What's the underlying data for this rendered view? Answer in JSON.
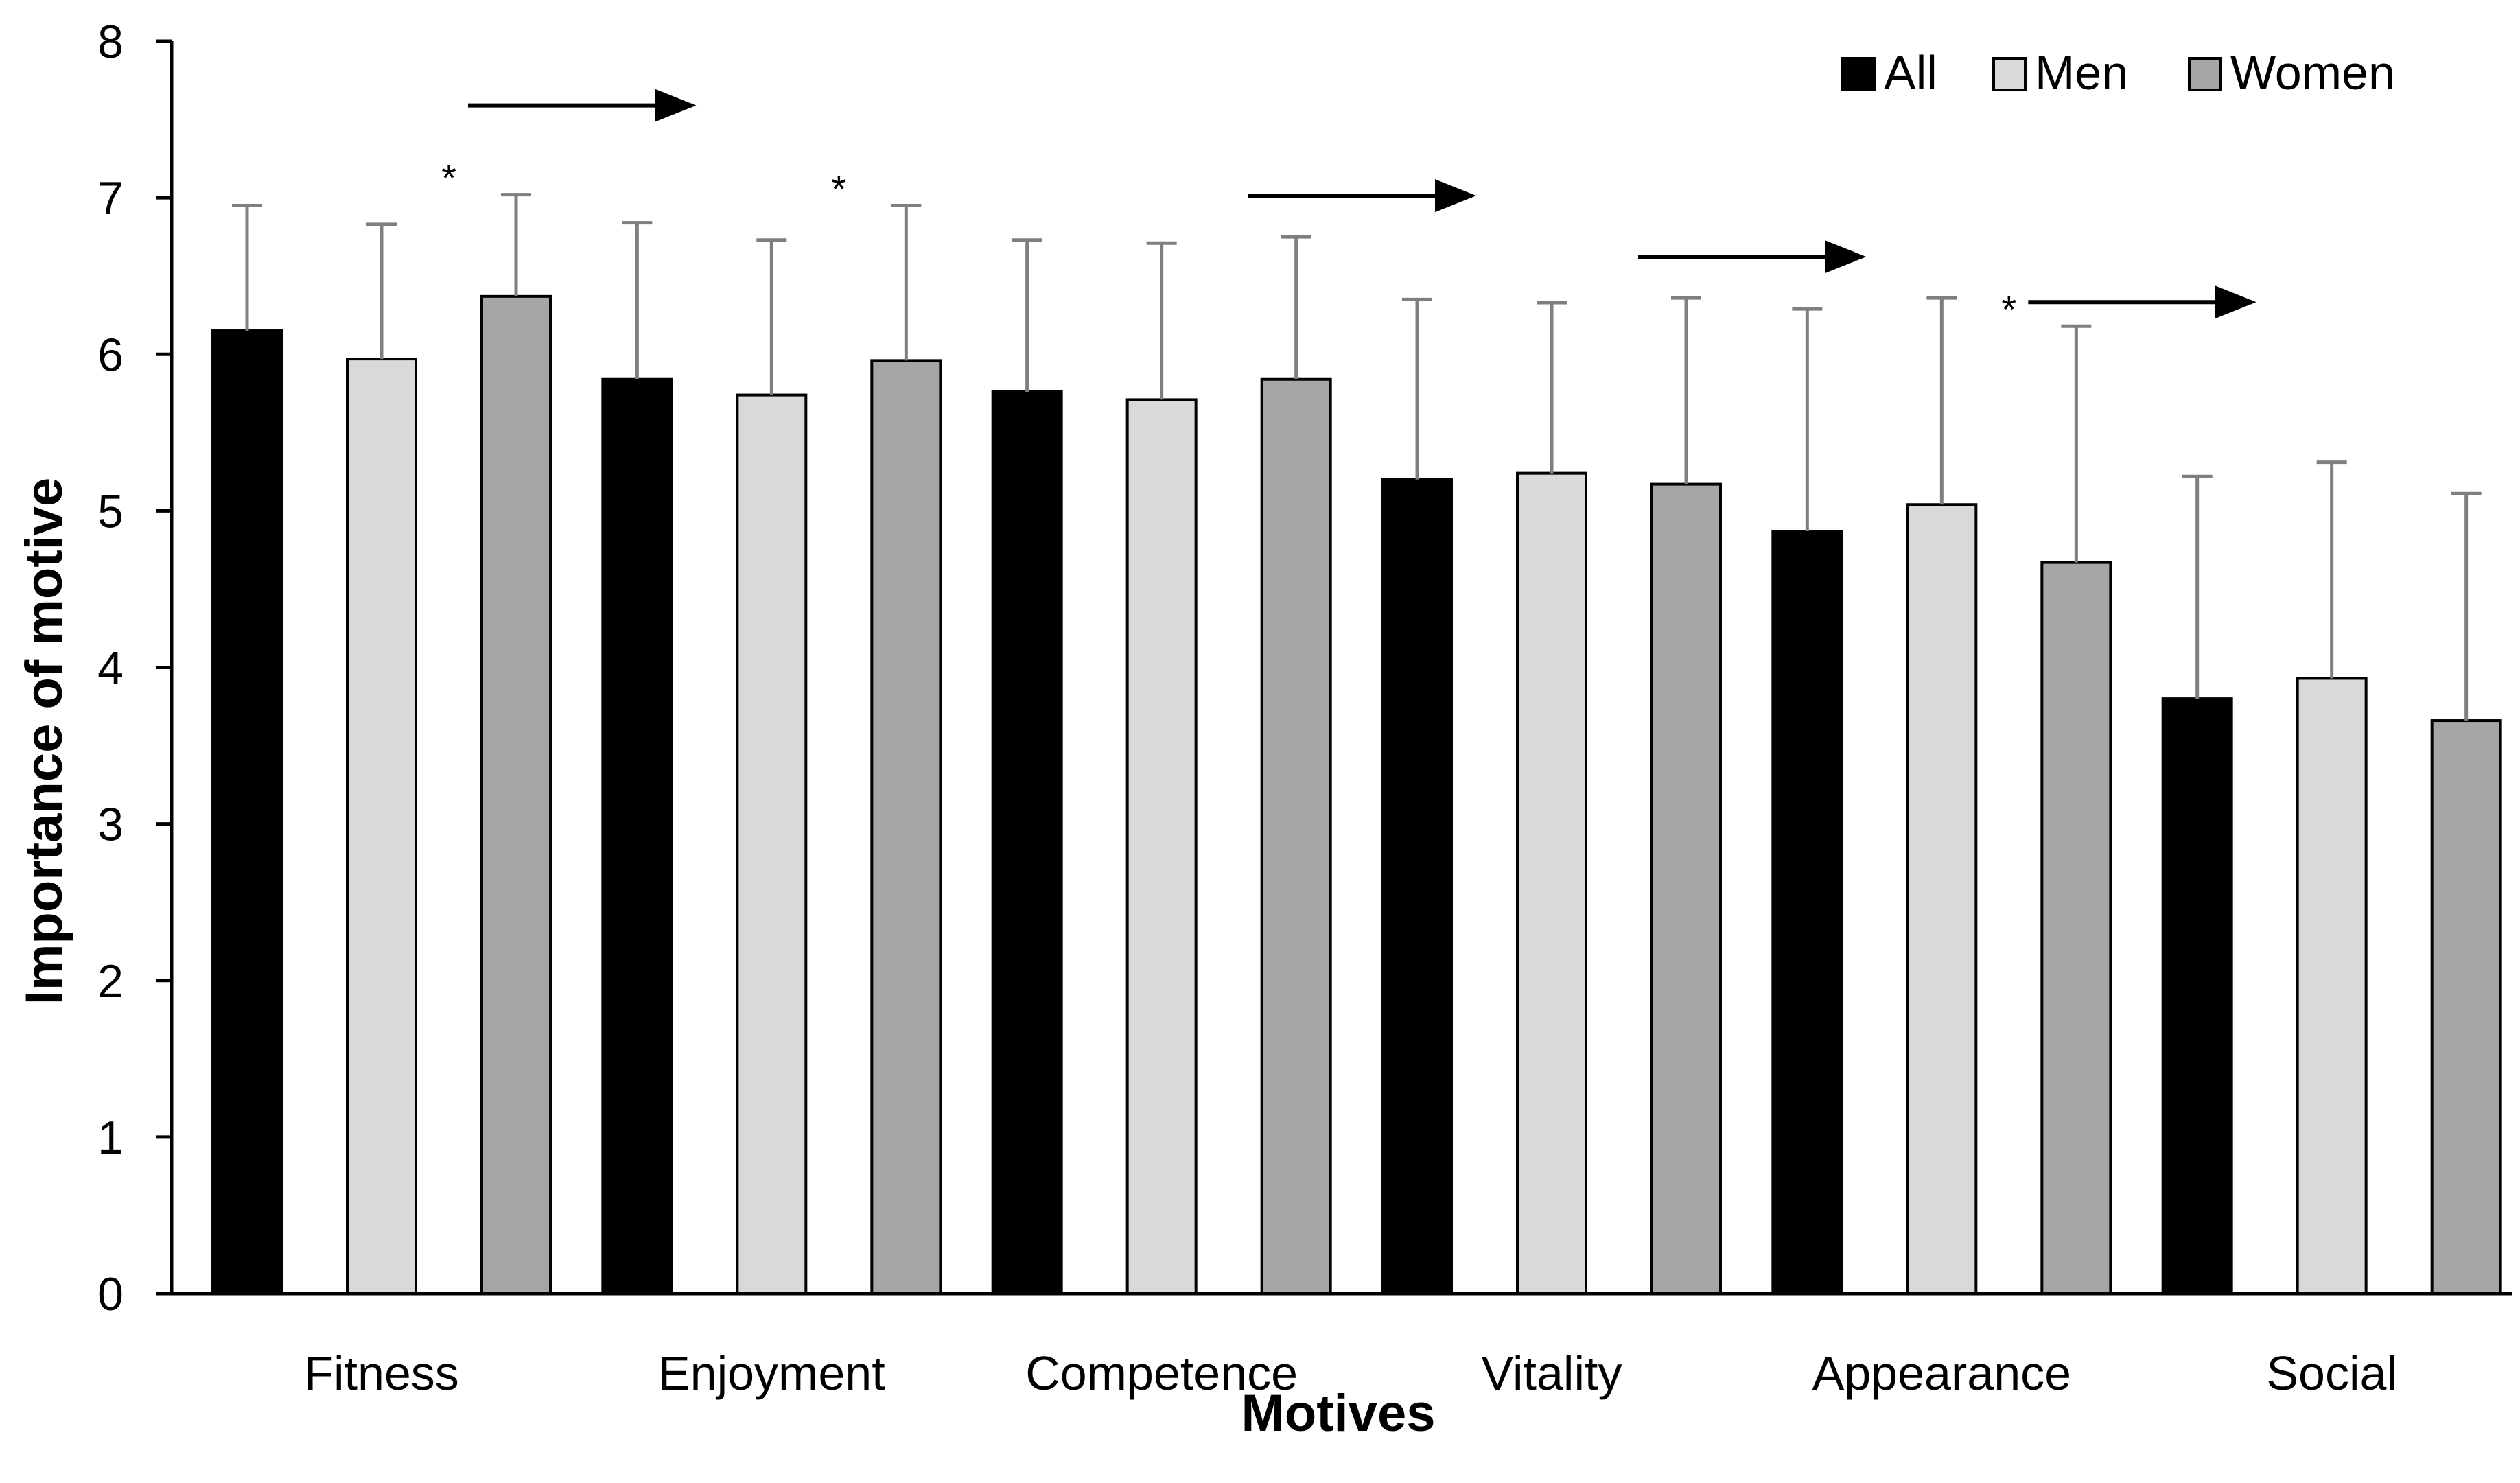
{
  "chart_data": {
    "type": "bar",
    "title": "",
    "xlabel": "Motives",
    "ylabel": "Importance of motive",
    "ylim": [
      0,
      8
    ],
    "yticks": [
      0,
      1,
      2,
      3,
      4,
      5,
      6,
      7,
      8
    ],
    "categories": [
      "Fitness",
      "Enjoyment",
      "Competence",
      "Vitality",
      "Appearance",
      "Social"
    ],
    "series": [
      {
        "name": "All",
        "color": "#000000",
        "values": [
          6.15,
          5.84,
          5.76,
          5.2,
          4.87,
          3.8
        ],
        "errors": [
          0.8,
          1.0,
          0.97,
          1.15,
          1.42,
          1.42
        ]
      },
      {
        "name": "Men",
        "color": "#d9d9d9",
        "values": [
          5.97,
          5.74,
          5.71,
          5.24,
          5.04,
          3.93
        ],
        "errors": [
          0.86,
          0.99,
          1.0,
          1.09,
          1.32,
          1.38
        ]
      },
      {
        "name": "Women",
        "color": "#a6a6a6",
        "values": [
          6.37,
          5.96,
          5.84,
          5.17,
          4.67,
          3.66
        ],
        "errors": [
          0.65,
          0.99,
          0.91,
          1.19,
          1.51,
          1.45
        ]
      }
    ],
    "legend_position": "top-right",
    "annotations": [
      {
        "type": "significance",
        "text": "*",
        "category": "Fitness"
      },
      {
        "type": "significance",
        "text": "*",
        "category": "Enjoyment"
      },
      {
        "type": "significance",
        "text": "*",
        "category": "Appearance"
      },
      {
        "type": "arrow",
        "from": "Fitness",
        "to": "Enjoyment"
      },
      {
        "type": "arrow",
        "from": "Competence",
        "to": "Vitality"
      },
      {
        "type": "arrow",
        "from": "Vitality",
        "to": "Appearance"
      },
      {
        "type": "arrow",
        "from": "Appearance",
        "to": "Social"
      }
    ]
  }
}
